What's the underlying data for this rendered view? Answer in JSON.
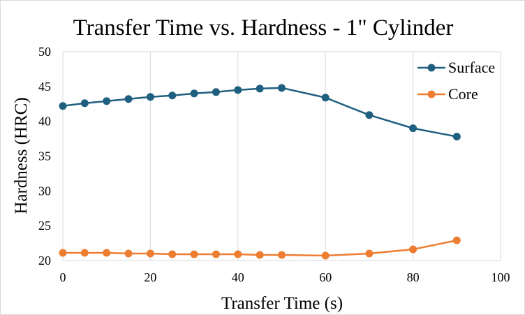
{
  "chart_data": {
    "type": "line",
    "title": "Transfer Time vs. Hardness - 1\" Cylinder",
    "xlabel": "Transfer  Time (s)",
    "ylabel": "Hardness  (HRC)",
    "xlim": [
      0,
      100
    ],
    "ylim": [
      20,
      50
    ],
    "xticks": [
      0,
      20,
      40,
      60,
      80,
      100
    ],
    "yticks": [
      20,
      25,
      30,
      35,
      40,
      45,
      50
    ],
    "grid": "vertical",
    "legend_position": "top-right",
    "series": [
      {
        "name": "Surface",
        "color": "#1f5f80",
        "points": [
          [
            0,
            42.2
          ],
          [
            5,
            42.6
          ],
          [
            10,
            42.9
          ],
          [
            15,
            43.2
          ],
          [
            20,
            43.5
          ],
          [
            25,
            43.7
          ],
          [
            30,
            44.0
          ],
          [
            35,
            44.2
          ],
          [
            40,
            44.5
          ],
          [
            45,
            44.7
          ],
          [
            50,
            44.8
          ],
          [
            60,
            43.4
          ],
          [
            70,
            40.9
          ],
          [
            80,
            39.0
          ],
          [
            90,
            37.8
          ]
        ]
      },
      {
        "name": "Core",
        "color": "#ed7d31",
        "points": [
          [
            0,
            21.1
          ],
          [
            5,
            21.1
          ],
          [
            10,
            21.1
          ],
          [
            15,
            21.0
          ],
          [
            20,
            21.0
          ],
          [
            25,
            20.9
          ],
          [
            30,
            20.9
          ],
          [
            35,
            20.9
          ],
          [
            40,
            20.9
          ],
          [
            45,
            20.8
          ],
          [
            50,
            20.8
          ],
          [
            60,
            20.7
          ],
          [
            70,
            21.0
          ],
          [
            80,
            21.6
          ],
          [
            90,
            22.9
          ]
        ]
      }
    ]
  }
}
